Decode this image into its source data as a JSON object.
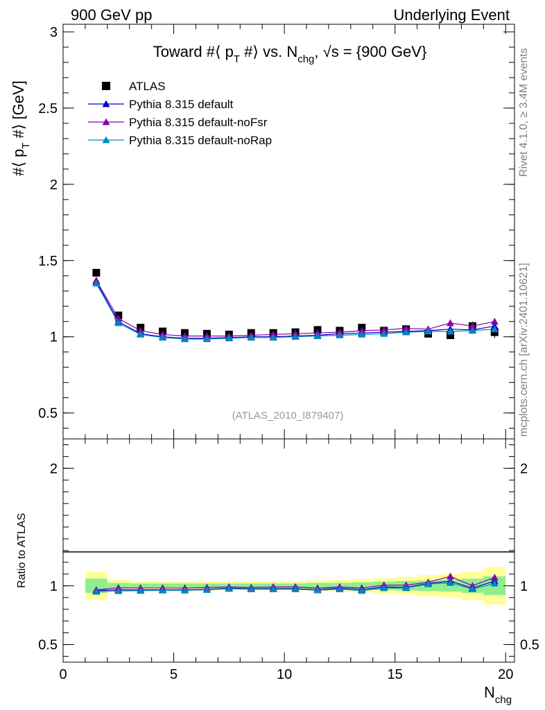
{
  "header": {
    "left_label": "900 GeV pp",
    "right_label": "Underlying Event"
  },
  "side_labels": {
    "rivet": "Rivet 4.1.0, ≥ 3.4M events",
    "mcplots": "mcplots.cern.ch [arXiv:2401.10621]"
  },
  "chart_data": [
    {
      "type": "scatter",
      "title": "Toward #⟨ pT #⟩ vs. Nchg, √s = {900 GeV}",
      "title_parts": {
        "t1": "Toward #⟨ p",
        "t1_sub": "T",
        "t2": " #⟩ vs. N",
        "t2_sub": "chg",
        "t3": ", √s = {900 GeV}"
      },
      "ylabel": "#⟨ pT #⟩ [GeV]",
      "ylabel_parts": {
        "a": "#⟨ p",
        "sub": "T",
        "b": " #⟩ [GeV]"
      },
      "xlabel": "Nchg",
      "xlabel_parts": {
        "main": "N",
        "sub": "chg"
      },
      "xlim": [
        0,
        20.4
      ],
      "ylim": [
        0.33,
        3.05
      ],
      "yticks": [
        0.5,
        1,
        1.5,
        2,
        2.5,
        3
      ],
      "ytick_labels": [
        "0.5",
        "1",
        "1.5",
        "2",
        "2.5",
        "3"
      ],
      "analysis_label": "(ATLAS_2010_I879407)",
      "x": [
        1.5,
        2.5,
        3.5,
        4.5,
        5.5,
        6.5,
        7.5,
        8.5,
        9.5,
        10.5,
        11.5,
        12.5,
        13.5,
        14.5,
        15.5,
        16.5,
        17.5,
        18.5,
        19.5
      ],
      "series": [
        {
          "name": "ATLAS",
          "color": "#000000",
          "marker": "square",
          "values": [
            1.42,
            1.14,
            1.06,
            1.035,
            1.025,
            1.02,
            1.015,
            1.025,
            1.025,
            1.03,
            1.045,
            1.04,
            1.06,
            1.04,
            1.05,
            1.02,
            1.01,
            1.07,
            1.03
          ],
          "errors": [
            0.02,
            0.012,
            0.01,
            0.01,
            0.01,
            0.01,
            0.01,
            0.01,
            0.01,
            0.01,
            0.012,
            0.012,
            0.014,
            0.014,
            0.016,
            0.02,
            0.024,
            0.03,
            0.04
          ]
        },
        {
          "name": "Pythia 8.315 default",
          "color": "#0000cc",
          "marker": "triangle",
          "values": [
            1.36,
            1.1,
            1.02,
            1.0,
            0.99,
            0.99,
            0.995,
            1.0,
            1.0,
            1.005,
            1.01,
            1.02,
            1.025,
            1.03,
            1.035,
            1.04,
            1.05,
            1.045,
            1.07
          ]
        },
        {
          "name": "Pythia 8.315 default-noFsr",
          "color": "#8800aa",
          "marker": "triangle",
          "values": [
            1.37,
            1.12,
            1.04,
            1.015,
            1.005,
            1.005,
            1.005,
            1.01,
            1.015,
            1.02,
            1.025,
            1.03,
            1.04,
            1.045,
            1.055,
            1.05,
            1.09,
            1.07,
            1.1
          ]
        },
        {
          "name": "Pythia 8.315 default-noRap",
          "color": "#0088bb",
          "marker": "triangle",
          "values": [
            1.35,
            1.09,
            1.015,
            0.995,
            0.985,
            0.985,
            0.99,
            0.995,
            0.995,
            1.0,
            1.005,
            1.01,
            1.015,
            1.02,
            1.03,
            1.035,
            1.035,
            1.04,
            1.05
          ]
        }
      ]
    },
    {
      "type": "scatter",
      "ylabel": "Ratio to ATLAS",
      "xlabel": "Nchg",
      "xlim": [
        0,
        20.4
      ],
      "ylim": [
        0.35,
        2.25
      ],
      "yticks": [
        0.5,
        1,
        2
      ],
      "ytick_labels": [
        "0.5",
        "1",
        "2"
      ],
      "xticks": [
        0,
        5,
        10,
        15,
        20
      ],
      "xtick_labels": [
        "0",
        "5",
        "10",
        "15",
        "20"
      ],
      "x": [
        1.5,
        2.5,
        3.5,
        4.5,
        5.5,
        6.5,
        7.5,
        8.5,
        9.5,
        10.5,
        11.5,
        12.5,
        13.5,
        14.5,
        15.5,
        16.5,
        17.5,
        18.5,
        19.5
      ],
      "band_inner": [
        0.06,
        0.025,
        0.02,
        0.02,
        0.02,
        0.02,
        0.02,
        0.02,
        0.02,
        0.02,
        0.025,
        0.025,
        0.03,
        0.035,
        0.04,
        0.045,
        0.05,
        0.06,
        0.08
      ],
      "band_outer": [
        0.12,
        0.05,
        0.04,
        0.04,
        0.04,
        0.04,
        0.04,
        0.04,
        0.04,
        0.04,
        0.045,
        0.05,
        0.055,
        0.065,
        0.075,
        0.09,
        0.1,
        0.12,
        0.16
      ],
      "band_inner_color": "#90ee90",
      "band_outer_color": "#ffff99",
      "series": [
        {
          "name": "Pythia 8.315 default",
          "color": "#0000cc",
          "values": [
            0.96,
            0.965,
            0.965,
            0.965,
            0.965,
            0.97,
            0.98,
            0.975,
            0.976,
            0.976,
            0.966,
            0.981,
            0.967,
            0.99,
            0.986,
            1.02,
            1.04,
            0.98,
            1.04
          ]
        },
        {
          "name": "Pythia 8.315 default-noFsr",
          "color": "#8800aa",
          "values": [
            0.965,
            0.982,
            0.981,
            0.981,
            0.98,
            0.985,
            0.99,
            0.985,
            0.99,
            0.99,
            0.98,
            0.99,
            0.981,
            1.005,
            1.005,
            1.03,
            1.08,
            1.0,
            1.07
          ]
        },
        {
          "name": "Pythia 8.315 default-noRap",
          "color": "#0088bb",
          "values": [
            0.95,
            0.956,
            0.958,
            0.961,
            0.961,
            0.966,
            0.975,
            0.971,
            0.971,
            0.971,
            0.962,
            0.971,
            0.958,
            0.981,
            0.981,
            1.015,
            1.025,
            0.972,
            1.02
          ]
        }
      ]
    }
  ]
}
